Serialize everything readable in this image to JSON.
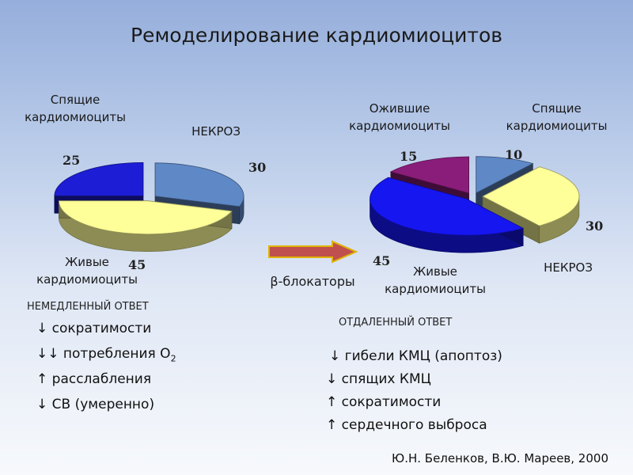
{
  "title": "Ремоделирование кардиомиоцитов",
  "chart_data": [
    {
      "type": "pie",
      "title": "",
      "slices": [
        {
          "label": "НЕКРОЗ",
          "value": 30,
          "color": "#5f88c6"
        },
        {
          "label": "Живые кардиомиоциты",
          "value": 45,
          "color": "#ffff99"
        },
        {
          "label": "Спящие кардиомиоциты",
          "value": 25,
          "color": "#1d1dd6"
        }
      ],
      "labels": {
        "sleeping": [
          "Спящие",
          "кардиомиоциты"
        ],
        "necrosis": "НЕКРОЗ",
        "living": [
          "Живые",
          "кардиомиоциты"
        ]
      },
      "values_text": {
        "sleeping": "25",
        "necrosis": "30",
        "living": "45"
      }
    },
    {
      "type": "pie",
      "title": "",
      "slices": [
        {
          "label": "Спящие кардиомиоциты",
          "value": 10,
          "color": "#5f88c6"
        },
        {
          "label": "НЕКРОЗ",
          "value": 30,
          "color": "#ffff99"
        },
        {
          "label": "Живые кардиомиоциты",
          "value": 45,
          "color": "#1616f0"
        },
        {
          "label": "Ожившие кардиомиоциты",
          "value": 15,
          "color": "#8a1d7a"
        }
      ],
      "labels": {
        "revived": [
          "Ожившие",
          "кардиомиоциты"
        ],
        "sleeping": [
          "Спящие",
          "кардиомиоциты"
        ],
        "necrosis": "НЕКРОЗ",
        "living": [
          "Живые",
          "кардиомиоциты"
        ]
      },
      "values_text": {
        "revived": "15",
        "sleeping": "10",
        "necrosis": "30",
        "living": "45"
      }
    }
  ],
  "arrow_label": "β-блокаторы",
  "immediate": {
    "header": "НЕМЕДЛЕННЫЙ ОТВЕТ",
    "items": [
      {
        "arrow": "↓",
        "text": "сократимости"
      },
      {
        "arrow": "↓↓",
        "text": "потребления O",
        "sub": "2"
      },
      {
        "arrow": "↑",
        "text": "расслабления"
      },
      {
        "arrow": "↓",
        "text": "СВ (умеренно)"
      }
    ]
  },
  "delayed": {
    "header": "ОТДАЛЕННЫЙ ОТВЕТ",
    "items": [
      {
        "arrow": "↓",
        "text": "гибели КМЦ (апоптоз)"
      },
      {
        "arrow": "↓",
        "text": "спящих КМЦ"
      },
      {
        "arrow": "↑",
        "text": "сократимости"
      },
      {
        "arrow": "↑",
        "text": "сердечного выброса"
      }
    ]
  },
  "credit": "Ю.Н. Беленков, В.Ю. Мареев, 2000",
  "colors": {
    "arrow_fill": "#c0504d",
    "arrow_stroke": "#e0b400"
  }
}
